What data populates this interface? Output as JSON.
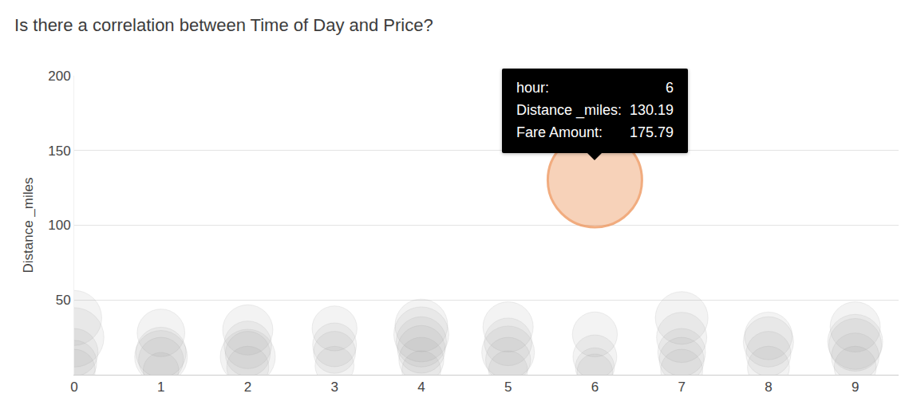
{
  "chart_data": {
    "type": "scatter",
    "title": "Is there a correlation between Time of Day and Price?",
    "y_label": "Distance _miles",
    "x": [
      0,
      0,
      0,
      0,
      0,
      1,
      1,
      1,
      1,
      1,
      2,
      2,
      2,
      2,
      2,
      3,
      3,
      3,
      3,
      4,
      4,
      4,
      4,
      4,
      4,
      5,
      5,
      5,
      5,
      5,
      6,
      6,
      6,
      6,
      6,
      7,
      7,
      7,
      7,
      7,
      8,
      8,
      8,
      8,
      9,
      9,
      9,
      9,
      9
    ],
    "values": [
      38,
      25,
      15,
      8,
      3,
      28,
      15,
      12,
      3,
      10,
      30,
      20,
      12,
      5,
      14,
      31,
      20,
      6,
      15,
      33,
      27,
      22,
      17,
      10,
      3,
      32,
      22,
      15,
      10,
      3,
      27,
      12,
      5,
      2,
      130.19,
      38,
      25,
      15,
      10,
      3,
      26,
      22,
      14,
      5,
      32,
      22,
      12,
      5,
      20
    ],
    "sizes": [
      60,
      70,
      45,
      40,
      35,
      45,
      50,
      55,
      25,
      40,
      50,
      45,
      60,
      35,
      40,
      40,
      38,
      30,
      35,
      55,
      60,
      50,
      45,
      40,
      30,
      50,
      45,
      55,
      40,
      30,
      40,
      38,
      30,
      25,
      175.79,
      55,
      50,
      45,
      40,
      35,
      45,
      50,
      40,
      35,
      50,
      60,
      45,
      35,
      55
    ],
    "colors": [
      "#a0a0a0",
      "#a0a0a0",
      "#a0a0a0",
      "#a0a0a0",
      "#a0a0a0",
      "#a0a0a0",
      "#a0a0a0",
      "#a0a0a0",
      "#a0a0a0",
      "#a0a0a0",
      "#a0a0a0",
      "#a0a0a0",
      "#a0a0a0",
      "#a0a0a0",
      "#a0a0a0",
      "#a0a0a0",
      "#a0a0a0",
      "#a0a0a0",
      "#a0a0a0",
      "#a0a0a0",
      "#a0a0a0",
      "#a0a0a0",
      "#a0a0a0",
      "#a0a0a0",
      "#a0a0a0",
      "#a0a0a0",
      "#a0a0a0",
      "#a0a0a0",
      "#a0a0a0",
      "#a0a0a0",
      "#a0a0a0",
      "#a0a0a0",
      "#a0a0a0",
      "#a0a0a0",
      "#ec8a4a",
      "#a0a0a0",
      "#a0a0a0",
      "#a0a0a0",
      "#a0a0a0",
      "#a0a0a0",
      "#a0a0a0",
      "#a0a0a0",
      "#a0a0a0",
      "#a0a0a0",
      "#a0a0a0",
      "#a0a0a0",
      "#a0a0a0",
      "#a0a0a0",
      "#a0a0a0"
    ],
    "xlim": [
      0,
      9.5
    ],
    "xticks": [
      0,
      1,
      2,
      3,
      4,
      5,
      6,
      7,
      8,
      9
    ],
    "ylim": [
      0,
      200
    ],
    "yticks": [
      50,
      100,
      150,
      200
    ],
    "grid": true,
    "tooltip": {
      "point": 34,
      "labels": [
        "hour:",
        "Distance _miles:",
        "Fare Amount:"
      ]
    }
  }
}
